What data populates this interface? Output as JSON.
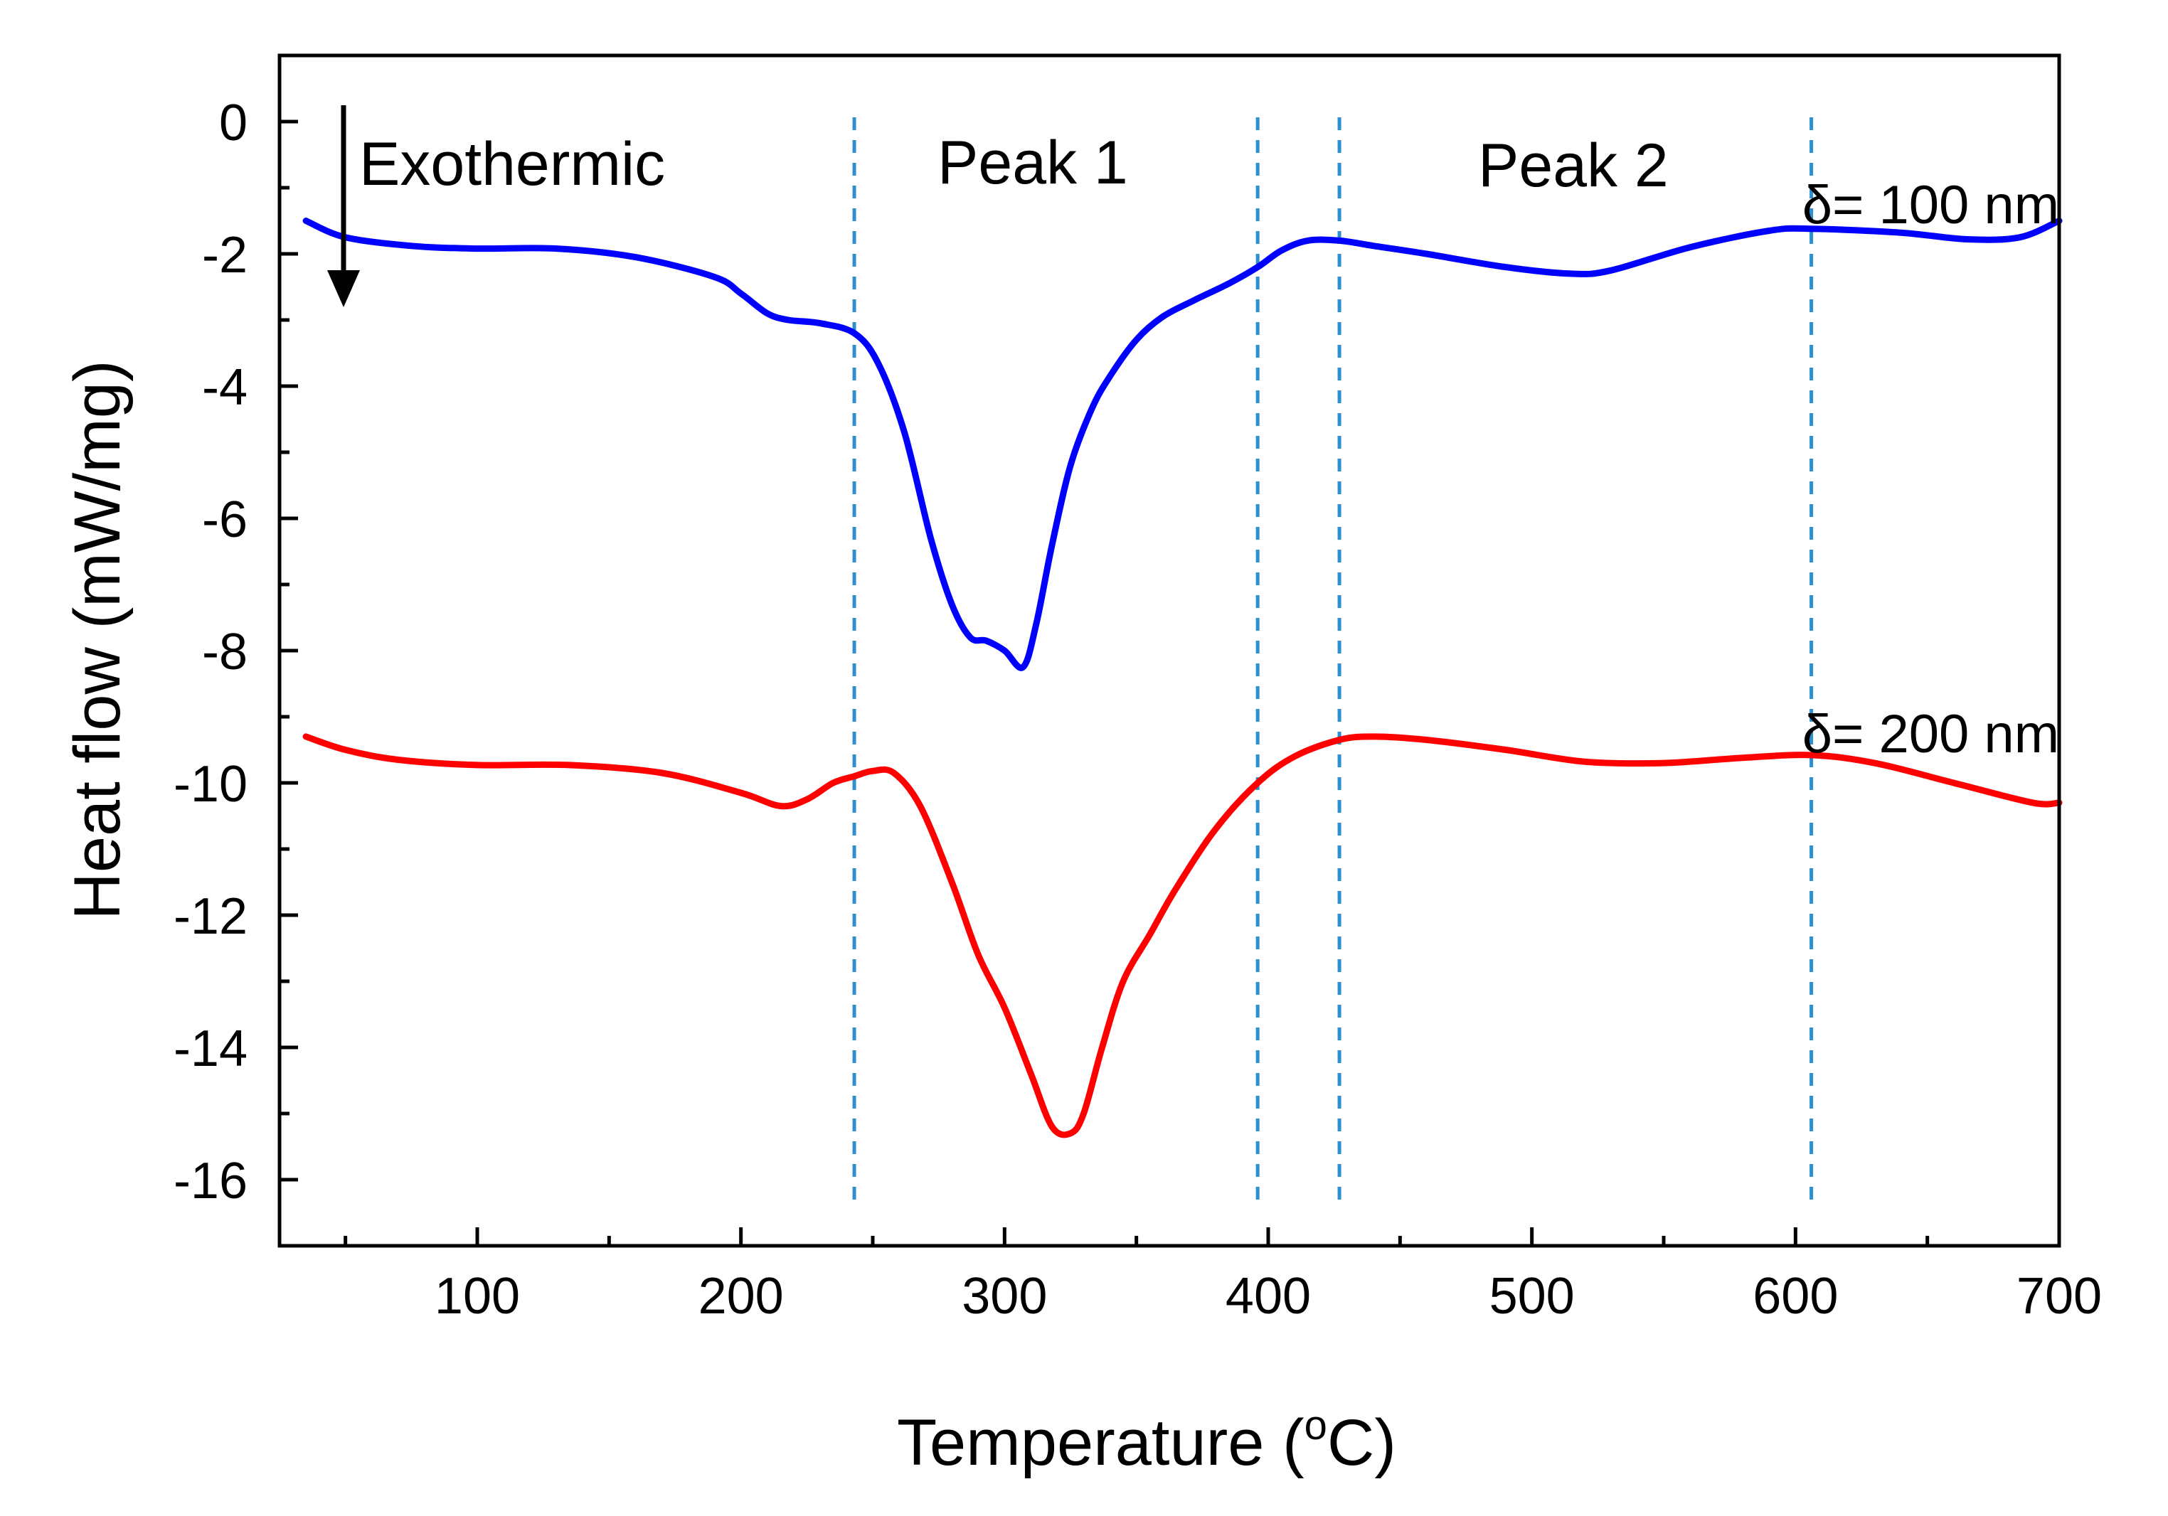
{
  "chart_data": {
    "type": "line",
    "title": "",
    "xlabel": "Temperature (",
    "xlabel_sup": "o",
    "xlabel_end": "C)",
    "ylabel": "Heat flow (mW/mg)",
    "xlim": [
      25,
      700
    ],
    "ylim": [
      -17,
      1
    ],
    "x_ticks": [
      100,
      200,
      300,
      400,
      500,
      600,
      700
    ],
    "x_tick_labels": [
      "100",
      "200",
      "300",
      "400",
      "500",
      "600",
      "700"
    ],
    "y_ticks": [
      0,
      -2,
      -4,
      -6,
      -8,
      -10,
      -12,
      -14,
      -16
    ],
    "y_tick_labels": [
      "0",
      "-2",
      "-4",
      "-6",
      "-8",
      "-10",
      "-12",
      "-14",
      "-16"
    ],
    "grid": false,
    "annotations": {
      "exothermic": "Exothermic",
      "peak1": "Peak 1",
      "peak2": "Peak 2"
    },
    "vertical_reference_lines": [
      243,
      396,
      427,
      606
    ],
    "series": [
      {
        "name": "δ= 100 nm",
        "color": "#0000ff",
        "x": [
          35,
          50,
          75,
          100,
          130,
          160,
          190,
          200,
          210,
          218,
          230,
          243,
          252,
          262,
          272,
          280,
          287,
          293,
          300,
          307,
          312,
          318,
          325,
          333,
          340,
          350,
          360,
          372,
          385,
          396,
          405,
          415,
          427,
          440,
          460,
          490,
          515,
          530,
          560,
          590,
          606,
          640,
          665,
          685,
          700
        ],
        "y": [
          -1.5,
          -1.75,
          -1.88,
          -1.92,
          -1.92,
          -2.05,
          -2.35,
          -2.6,
          -2.9,
          -3.0,
          -3.05,
          -3.2,
          -3.65,
          -4.7,
          -6.3,
          -7.3,
          -7.8,
          -7.85,
          -8.0,
          -8.25,
          -7.6,
          -6.4,
          -5.2,
          -4.35,
          -3.85,
          -3.3,
          -2.95,
          -2.7,
          -2.45,
          -2.2,
          -1.95,
          -1.8,
          -1.8,
          -1.88,
          -2.0,
          -2.2,
          -2.3,
          -2.25,
          -1.9,
          -1.65,
          -1.62,
          -1.68,
          -1.78,
          -1.75,
          -1.5
        ]
      },
      {
        "name": "δ= 200 nm",
        "color": "#ff0000",
        "x": [
          35,
          50,
          70,
          100,
          135,
          170,
          200,
          215,
          225,
          235,
          243,
          250,
          258,
          268,
          280,
          290,
          300,
          310,
          318,
          325,
          330,
          337,
          345,
          355,
          365,
          380,
          396,
          410,
          427,
          440,
          460,
          490,
          520,
          550,
          580,
          606,
          630,
          660,
          690,
          700
        ],
        "y": [
          -9.3,
          -9.5,
          -9.65,
          -9.73,
          -9.73,
          -9.85,
          -10.15,
          -10.35,
          -10.25,
          -10.0,
          -9.9,
          -9.82,
          -9.85,
          -10.35,
          -11.5,
          -12.6,
          -13.4,
          -14.4,
          -15.2,
          -15.3,
          -15.0,
          -14.0,
          -13.0,
          -12.3,
          -11.6,
          -10.7,
          -10.0,
          -9.6,
          -9.35,
          -9.3,
          -9.35,
          -9.5,
          -9.68,
          -9.7,
          -9.62,
          -9.58,
          -9.7,
          -10.0,
          -10.3,
          -10.3
        ]
      }
    ]
  }
}
